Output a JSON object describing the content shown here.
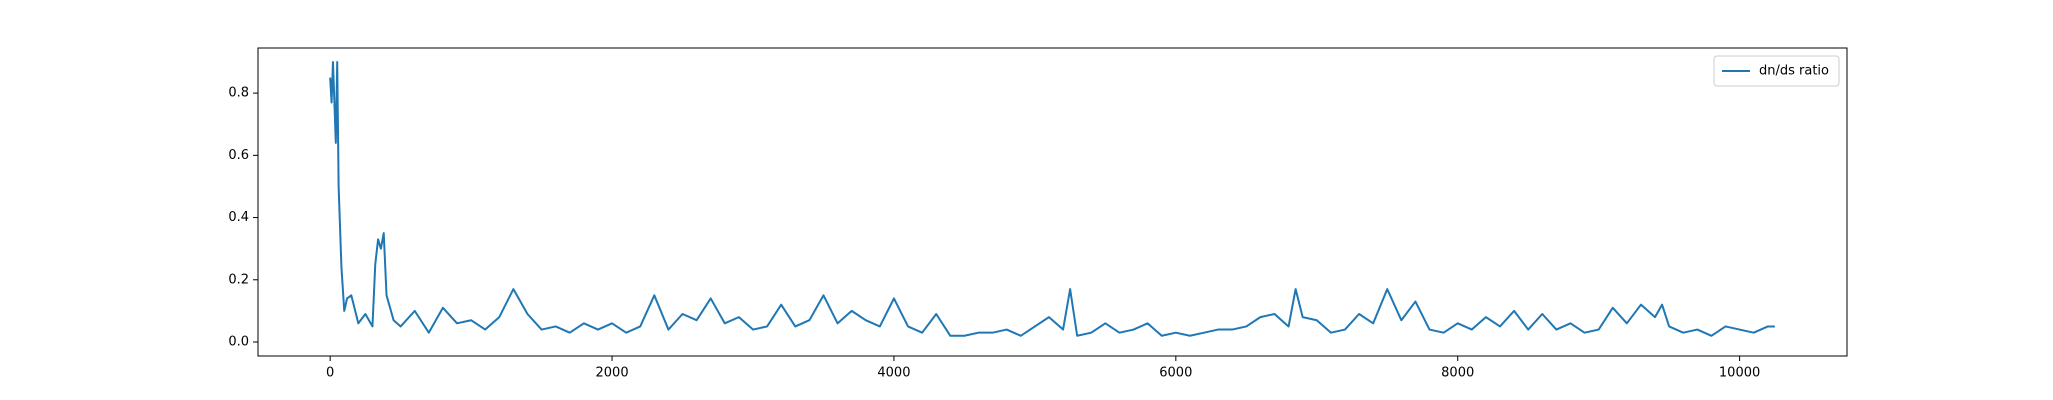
{
  "chart_data": {
    "type": "line",
    "x": [
      0,
      10,
      20,
      40,
      50,
      60,
      80,
      100,
      120,
      150,
      200,
      250,
      300,
      320,
      340,
      360,
      380,
      400,
      450,
      500,
      600,
      700,
      800,
      900,
      1000,
      1100,
      1200,
      1300,
      1400,
      1500,
      1600,
      1700,
      1800,
      1900,
      2000,
      2100,
      2200,
      2300,
      2400,
      2500,
      2600,
      2700,
      2800,
      2900,
      3000,
      3100,
      3200,
      3300,
      3400,
      3500,
      3600,
      3700,
      3800,
      3900,
      4000,
      4100,
      4200,
      4300,
      4400,
      4500,
      4600,
      4700,
      4800,
      4900,
      5000,
      5100,
      5200,
      5250,
      5300,
      5400,
      5500,
      5600,
      5700,
      5800,
      5900,
      6000,
      6100,
      6200,
      6300,
      6400,
      6500,
      6600,
      6700,
      6800,
      6850,
      6900,
      7000,
      7100,
      7200,
      7300,
      7400,
      7500,
      7600,
      7700,
      7800,
      7900,
      8000,
      8100,
      8200,
      8300,
      8400,
      8500,
      8600,
      8700,
      8800,
      8900,
      9000,
      9100,
      9200,
      9300,
      9400,
      9450,
      9500,
      9600,
      9700,
      9800,
      9900,
      10000,
      10100,
      10200,
      10250
    ],
    "series": [
      {
        "name": "dn/ds ratio",
        "color": "#1f77b4",
        "values": [
          0.85,
          0.77,
          0.9,
          0.64,
          0.9,
          0.5,
          0.24,
          0.1,
          0.14,
          0.15,
          0.06,
          0.09,
          0.05,
          0.25,
          0.33,
          0.3,
          0.35,
          0.15,
          0.07,
          0.05,
          0.1,
          0.03,
          0.11,
          0.06,
          0.07,
          0.04,
          0.08,
          0.17,
          0.09,
          0.04,
          0.05,
          0.03,
          0.06,
          0.04,
          0.06,
          0.03,
          0.05,
          0.15,
          0.04,
          0.09,
          0.07,
          0.14,
          0.06,
          0.08,
          0.04,
          0.05,
          0.12,
          0.05,
          0.07,
          0.15,
          0.06,
          0.1,
          0.07,
          0.05,
          0.14,
          0.05,
          0.03,
          0.09,
          0.02,
          0.02,
          0.03,
          0.03,
          0.04,
          0.02,
          0.05,
          0.08,
          0.04,
          0.17,
          0.02,
          0.03,
          0.06,
          0.03,
          0.04,
          0.06,
          0.02,
          0.03,
          0.02,
          0.03,
          0.04,
          0.04,
          0.05,
          0.08,
          0.09,
          0.05,
          0.17,
          0.08,
          0.07,
          0.03,
          0.04,
          0.09,
          0.06,
          0.17,
          0.07,
          0.13,
          0.04,
          0.03,
          0.06,
          0.04,
          0.08,
          0.05,
          0.1,
          0.04,
          0.09,
          0.04,
          0.06,
          0.03,
          0.04,
          0.11,
          0.06,
          0.12,
          0.08,
          0.12,
          0.05,
          0.03,
          0.04,
          0.02,
          0.05,
          0.04,
          0.03,
          0.05,
          0.05
        ]
      }
    ],
    "xlim": [
      -512,
      10762
    ],
    "ylim": [
      -0.045,
      0.945
    ],
    "xticks": [
      0,
      2000,
      4000,
      6000,
      8000,
      10000
    ],
    "yticks": [
      {
        "value": 0,
        "label": "0.0"
      },
      0.2,
      0.4,
      0.6,
      0.8
    ],
    "legend": "upper right"
  }
}
